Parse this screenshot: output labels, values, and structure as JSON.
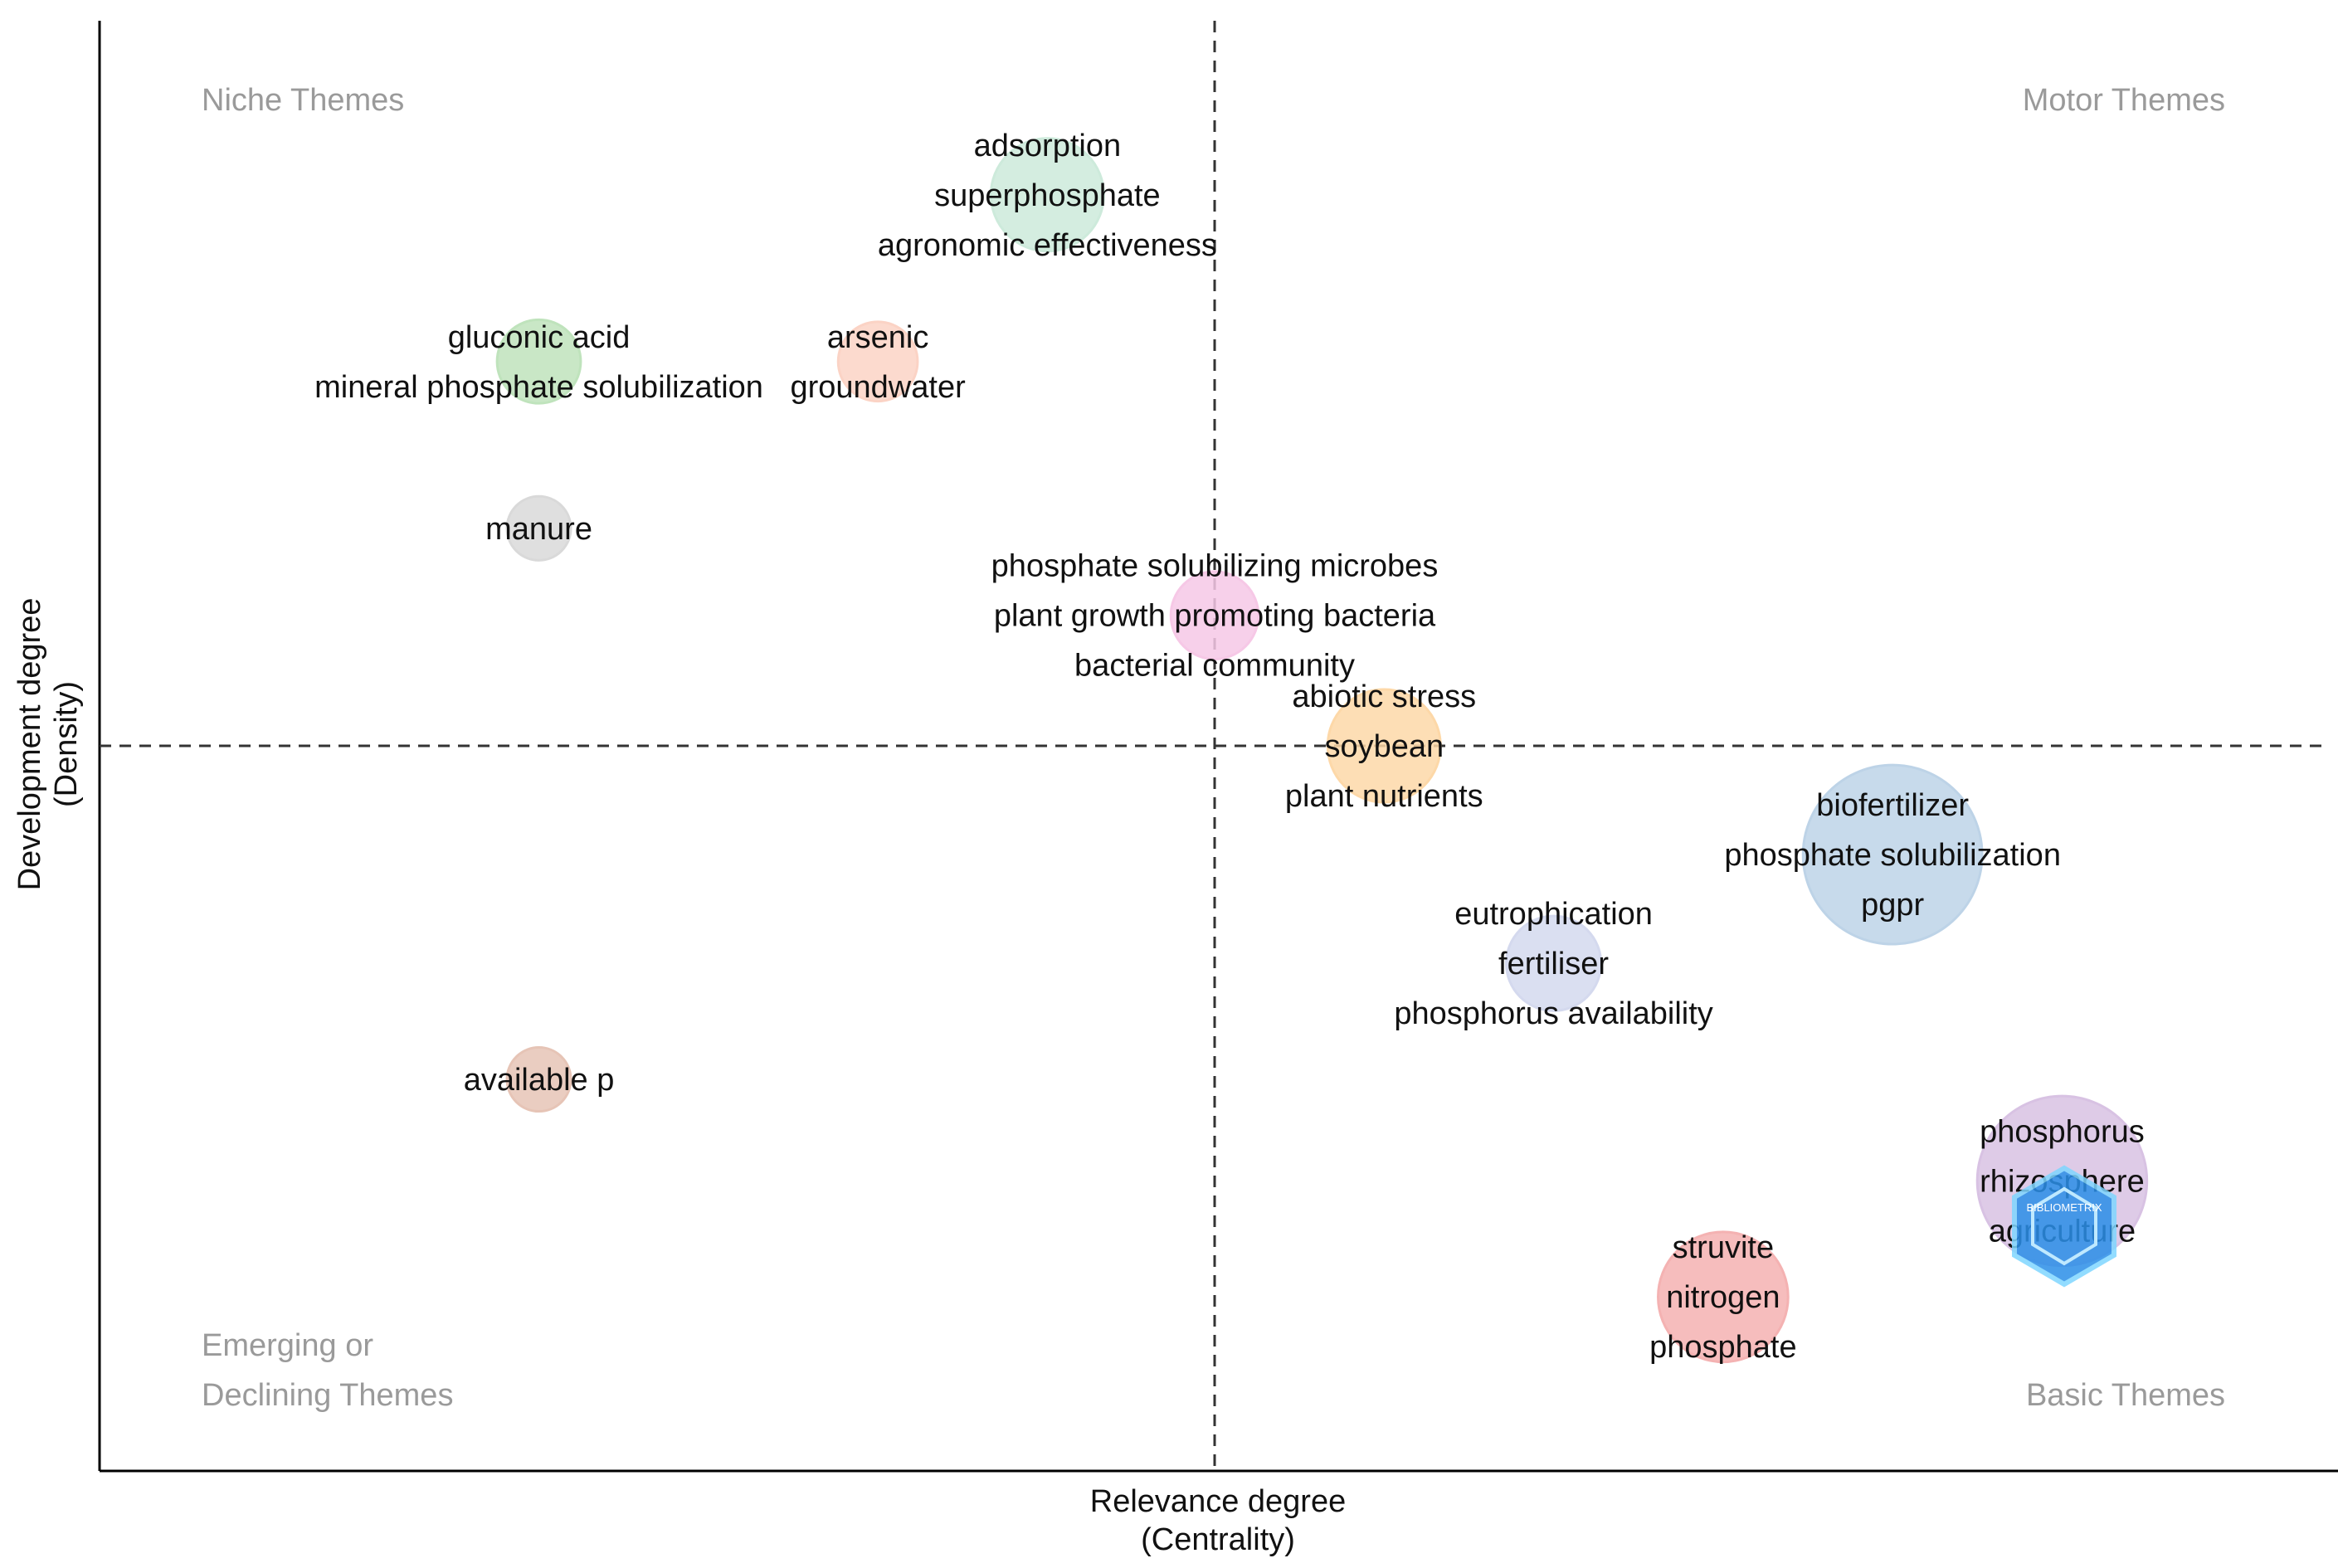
{
  "chart_data": {
    "type": "scatter",
    "title": "",
    "xlabel": "Relevance degree",
    "xlabel2": "(Centrality)",
    "ylabel": "Development degree",
    "ylabel2": "(Density)",
    "xlim": [
      0,
      1
    ],
    "ylim": [
      0,
      1
    ],
    "divider_x": 0.5,
    "divider_y": 0.5,
    "grid": false,
    "quadrants": {
      "niche": "Niche Themes",
      "motor": "Motor Themes",
      "emerging_line1": "Emerging or",
      "emerging_line2": "Declining Themes",
      "basic": "Basic Themes"
    },
    "clusters": [
      {
        "x": 0.425,
        "y": 0.88,
        "size": 0.16,
        "color": "#cdeadb",
        "labels": [
          "adsorption",
          "superphosphate",
          "agronomic effectiveness"
        ]
      },
      {
        "x": 0.197,
        "y": 0.765,
        "size": 0.07,
        "color": "#bfe3bc",
        "labels": [
          "gluconic acid",
          "mineral phosphate solubilization"
        ]
      },
      {
        "x": 0.349,
        "y": 0.765,
        "size": 0.06,
        "color": "#fbd3c5",
        "labels": [
          "arsenic",
          "groundwater"
        ]
      },
      {
        "x": 0.197,
        "y": 0.65,
        "size": 0.03,
        "color": "#d9d9d9",
        "labels": [
          "manure"
        ]
      },
      {
        "x": 0.5,
        "y": 0.59,
        "size": 0.08,
        "color": "#f6c8e6",
        "labels": [
          "phosphate solubilizing microbes",
          "plant growth promoting bacteria",
          "bacterial community"
        ]
      },
      {
        "x": 0.576,
        "y": 0.5,
        "size": 0.16,
        "color": "#fdd8a8",
        "labels": [
          "abiotic stress",
          "soybean",
          "plant nutrients"
        ]
      },
      {
        "x": 0.652,
        "y": 0.35,
        "size": 0.1,
        "color": "#d4d9ee",
        "labels": [
          "eutrophication",
          "fertiliser",
          "phosphorus availability"
        ]
      },
      {
        "x": 0.804,
        "y": 0.425,
        "size": 0.5,
        "color": "#bdd3e7",
        "labels": [
          "biofertilizer",
          "phosphate solubilization",
          "pgpr"
        ]
      },
      {
        "x": 0.197,
        "y": 0.27,
        "size": 0.03,
        "color": "#e6c4b6",
        "labels": [
          "available p"
        ]
      },
      {
        "x": 0.88,
        "y": 0.2,
        "size": 0.44,
        "color": "#d8c2e3",
        "labels": [
          "phosphorus",
          "rhizosphere",
          "agriculture"
        ]
      },
      {
        "x": 0.728,
        "y": 0.12,
        "size": 0.23,
        "color": "#f4b2b2",
        "labels": [
          "struvite",
          "nitrogen",
          "phosphate"
        ]
      }
    ],
    "watermark": "BIBLIOMETRIX"
  }
}
